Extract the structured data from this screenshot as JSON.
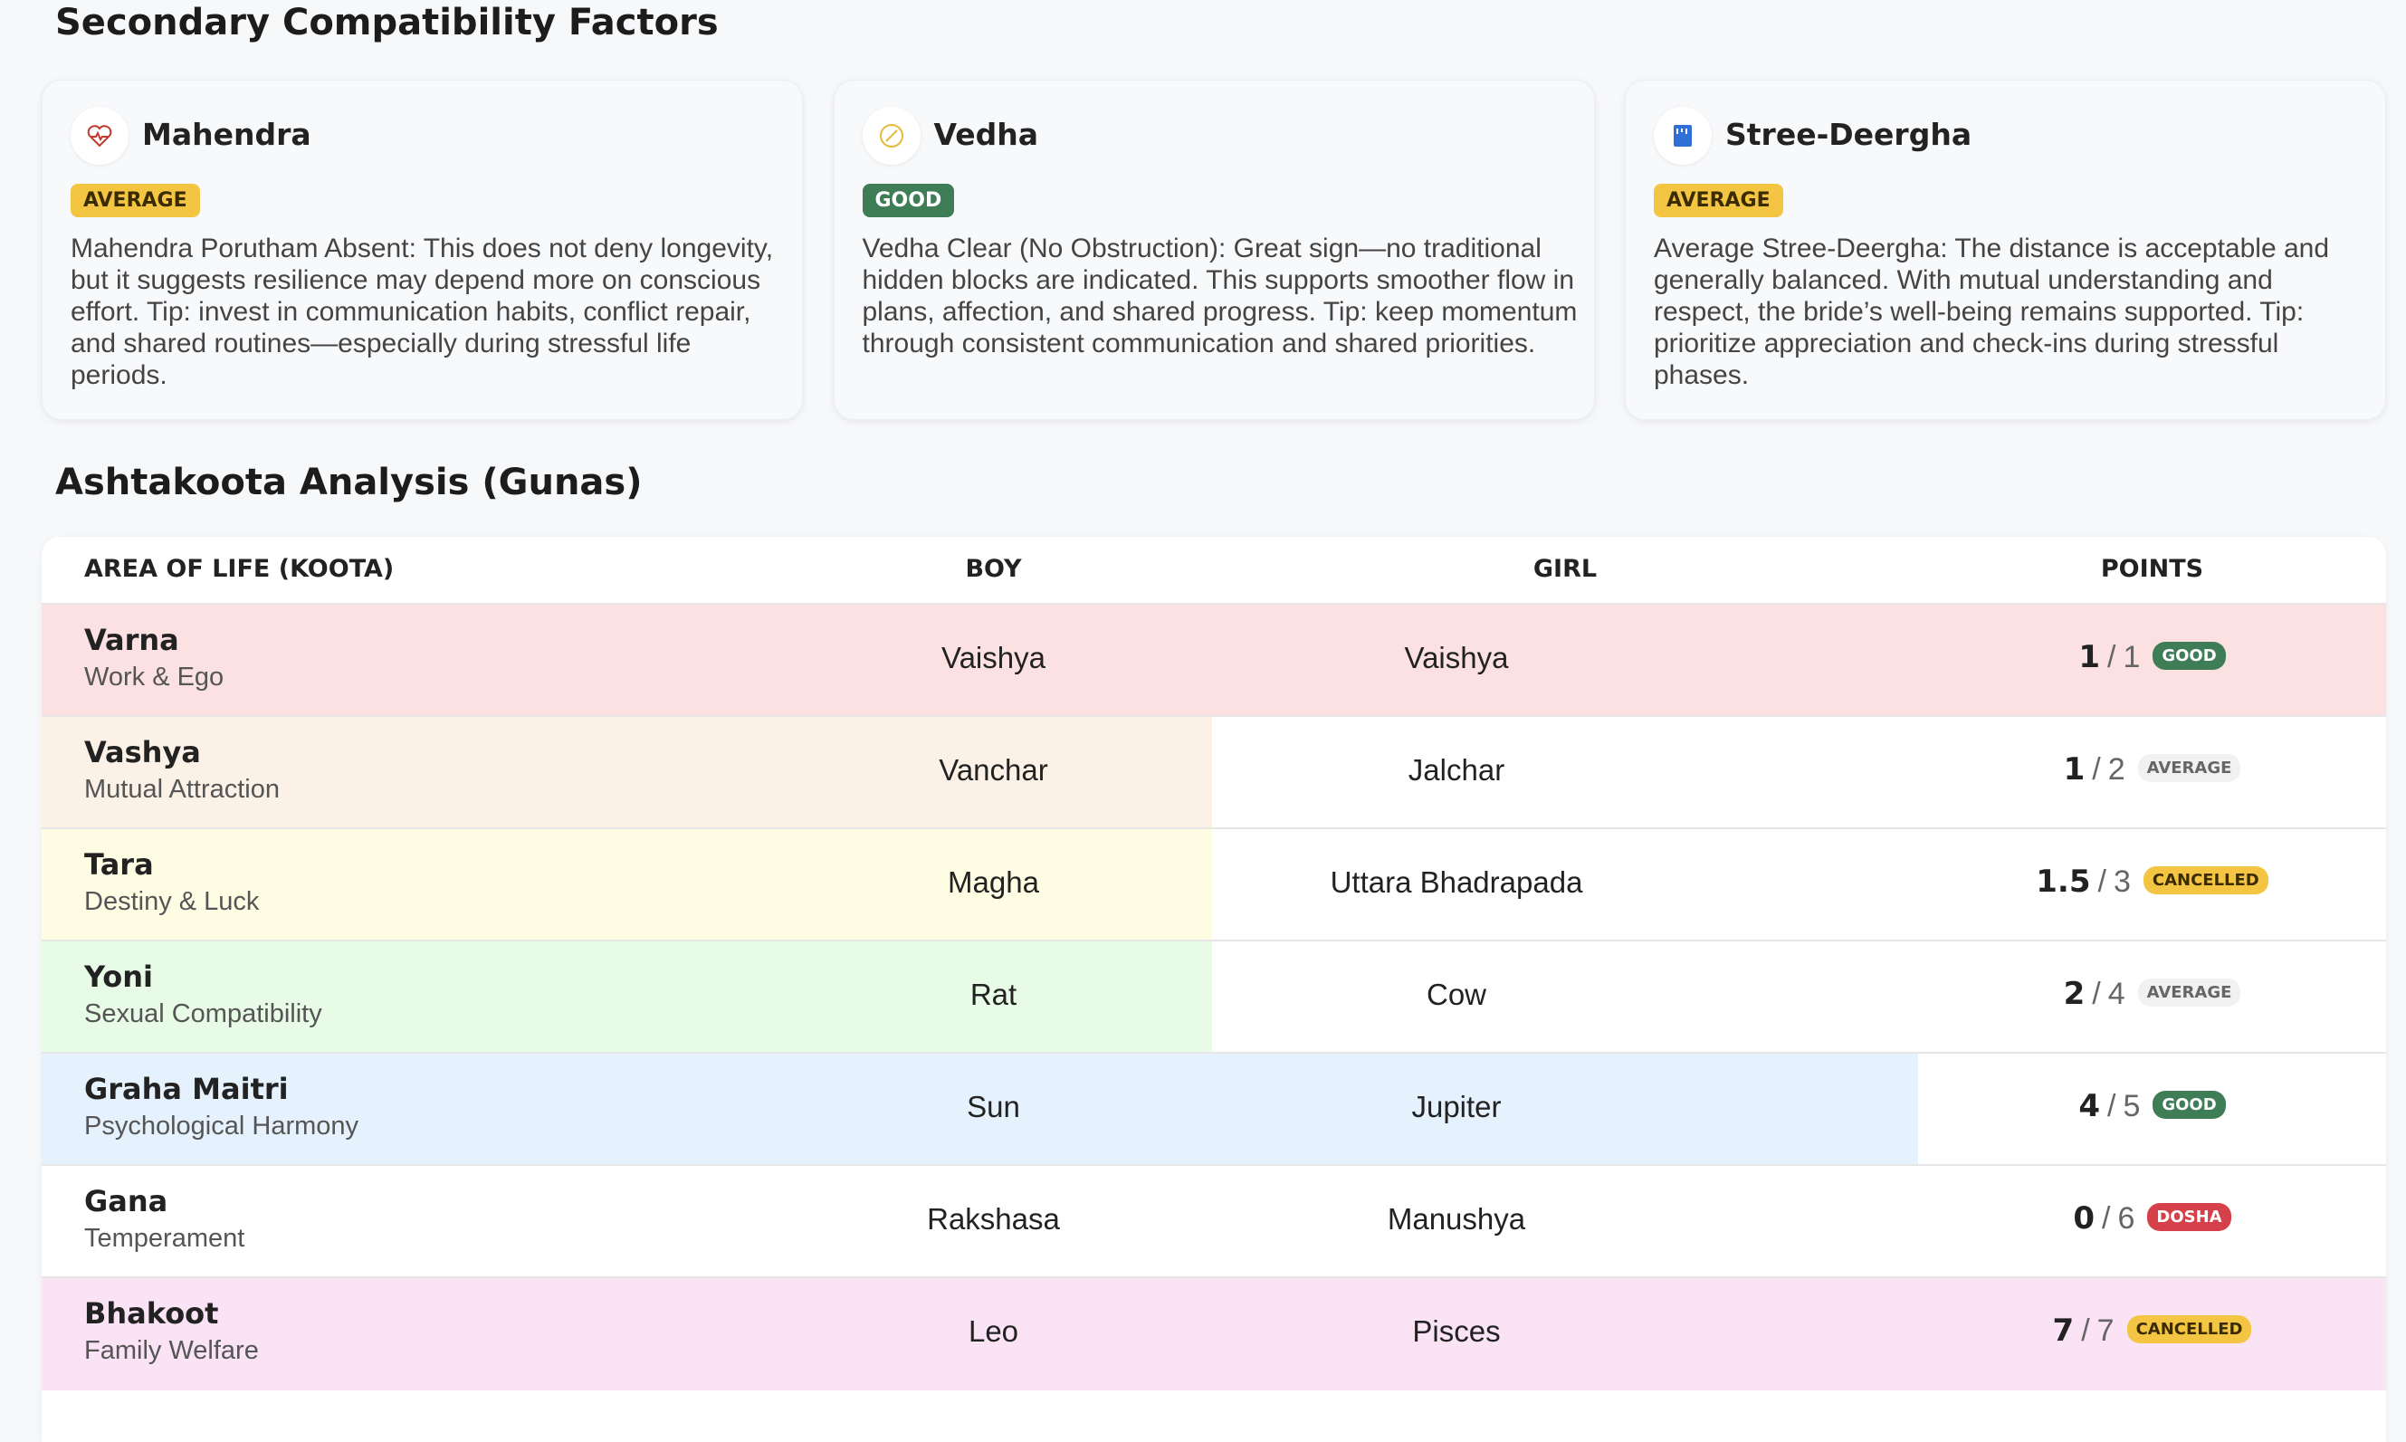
{
  "factors_section": {
    "title": "Secondary Compatibility Factors",
    "cards": [
      {
        "title": "Mahendra",
        "badge": "AVERAGE",
        "badge_color": "#f4c542",
        "text": "Mahendra Porutham Absent: This does not deny longevity, but it suggests resilience may depend more on conscious effort. Tip: invest in communication habits, conflict repair, and shared routines—especially during stressful life periods."
      },
      {
        "title": "Vedha",
        "badge": "GOOD",
        "badge_color": "#3e7d56",
        "text": "Vedha Clear (No Obstruction): Great sign—no traditional hidden blocks are indicated. This supports smoother flow in plans, affection, and shared progress. Tip: keep momentum through consistent communication and shared priorities."
      },
      {
        "title": "Stree-Deergha",
        "badge": "AVERAGE",
        "badge_color": "#f4c542",
        "text": "Average Stree-Deergha: The distance is acceptable and generally balanced. With mutual understanding and respect, the bride’s well-being remains supported. Tip: prioritize appreciation and check-ins during stressful phases."
      }
    ]
  },
  "guna_section": {
    "title": "Ashtakoota Analysis (Gunas)",
    "table": {
      "headers": [
        "AREA OF LIFE (KOOTA)",
        "BOY",
        "GIRL",
        "POINTS"
      ],
      "score_separator": "/",
      "rows": [
        {
          "koota": "Varna",
          "area": "Work & Ego",
          "boy": "Vaishya",
          "girl": "Vaishya",
          "points": 1,
          "max": 1,
          "status": "GOOD",
          "highlight_color": "#fbe1e1",
          "highlight_columns": 4
        },
        {
          "koota": "Vashya",
          "area": "Mutual Attraction",
          "boy": "Vanchar",
          "girl": "Jalchar",
          "points": 1,
          "max": 2,
          "status": "AVERAGE",
          "highlight_color": "#fcf1e6",
          "highlight_columns": 2
        },
        {
          "koota": "Tara",
          "area": "Destiny & Luck",
          "boy": "Magha",
          "girl": "Uttara Bhadrapada",
          "points": 1.5,
          "max": 3,
          "status": "CANCELLED",
          "highlight_color": "#fefde4",
          "highlight_columns": 2
        },
        {
          "koota": "Yoni",
          "area": "Sexual Compatibility",
          "boy": "Rat",
          "girl": "Cow",
          "points": 2,
          "max": 4,
          "status": "AVERAGE",
          "highlight_color": "#e7fbe6",
          "highlight_columns": 2
        },
        {
          "koota": "Graha Maitri",
          "area": "Psychological Harmony",
          "boy": "Sun",
          "girl": "Jupiter",
          "points": 4,
          "max": 5,
          "status": "GOOD",
          "highlight_color": "#e5f1fd",
          "highlight_columns": 3
        },
        {
          "koota": "Gana",
          "area": "Temperament",
          "boy": "Rakshasa",
          "girl": "Manushya",
          "points": 0,
          "max": 6,
          "status": "DOSHA",
          "highlight_color": "#ffffff",
          "highlight_columns": 0
        },
        {
          "koota": "Bhakoot",
          "area": "Family Welfare",
          "boy": "Leo",
          "girl": "Pisces",
          "points": 7,
          "max": 7,
          "status": "CANCELLED",
          "highlight_color": "#fae3f4",
          "highlight_columns": 4
        }
      ]
    }
  }
}
